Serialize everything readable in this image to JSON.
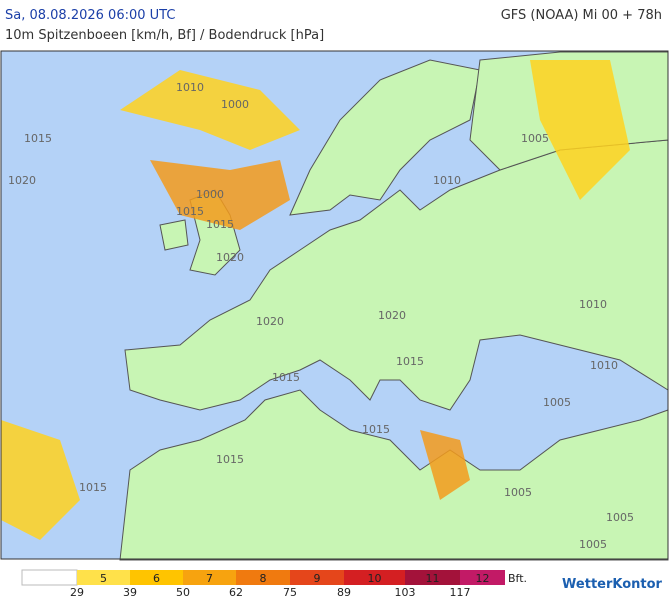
{
  "header": {
    "date": "Sa, 08.08.2026 06:00 UTC",
    "model": "GFS (NOAA) Mi 00 + 78h",
    "subtitle": "10m Spitzenboeen [km/h, Bf] / Bodendruck [hPa]"
  },
  "isobar_labels": [
    "1010",
    "1000",
    "1015",
    "1020",
    "1000",
    "1015",
    "1015",
    "1020",
    "1010",
    "1005",
    "1010",
    "1020",
    "1020",
    "1015",
    "1015",
    "1010",
    "1005",
    "1015",
    "1015",
    "1015",
    "1005",
    "1005",
    "1005"
  ],
  "legend": {
    "beaufort": [
      "5",
      "6",
      "7",
      "8",
      "9",
      "10",
      "11",
      "12"
    ],
    "unit": "Bft.",
    "kmh": [
      "29",
      "39",
      "50",
      "62",
      "75",
      "89",
      "103",
      "117"
    ]
  },
  "logo": "WetterKontor"
}
